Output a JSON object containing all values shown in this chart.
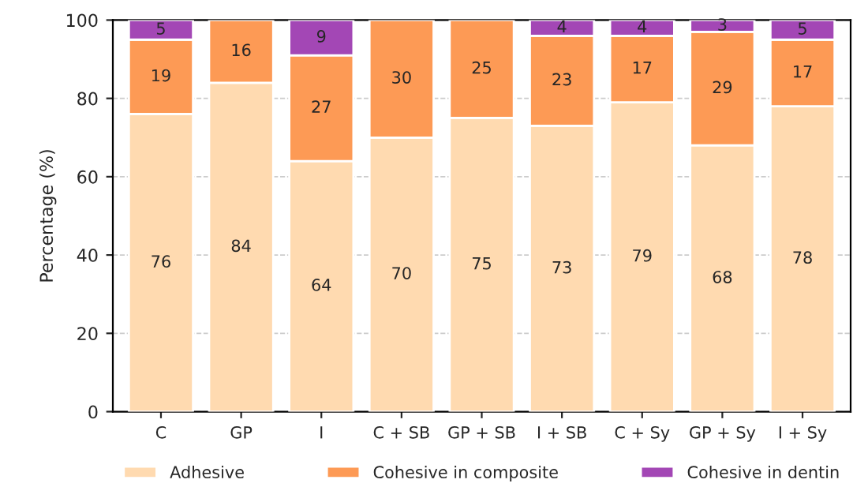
{
  "chart_data": {
    "type": "bar",
    "stacked": true,
    "ylabel": "Percentage (%)",
    "categories": [
      "C",
      "GP",
      "I",
      "C + SB",
      "GP + SB",
      "I + SB",
      "C + Sy",
      "GP + Sy",
      "I + Sy"
    ],
    "series": [
      {
        "name": "Adhesive",
        "color": "#ffdab0",
        "values": [
          76,
          84,
          64,
          70,
          75,
          73,
          79,
          68,
          78
        ]
      },
      {
        "name": "Cohesive in composite",
        "color": "#fd9a55",
        "values": [
          19,
          16,
          27,
          30,
          25,
          23,
          17,
          29,
          17
        ]
      },
      {
        "name": "Cohesive in dentin",
        "color": "#a347b5",
        "values": [
          5,
          null,
          9,
          null,
          null,
          4,
          4,
          3,
          5
        ]
      }
    ],
    "ylim": [
      0,
      100
    ],
    "yticks": [
      0,
      20,
      40,
      60,
      80,
      100
    ],
    "grid": "y",
    "legend": "bottom",
    "data_labels": true
  }
}
